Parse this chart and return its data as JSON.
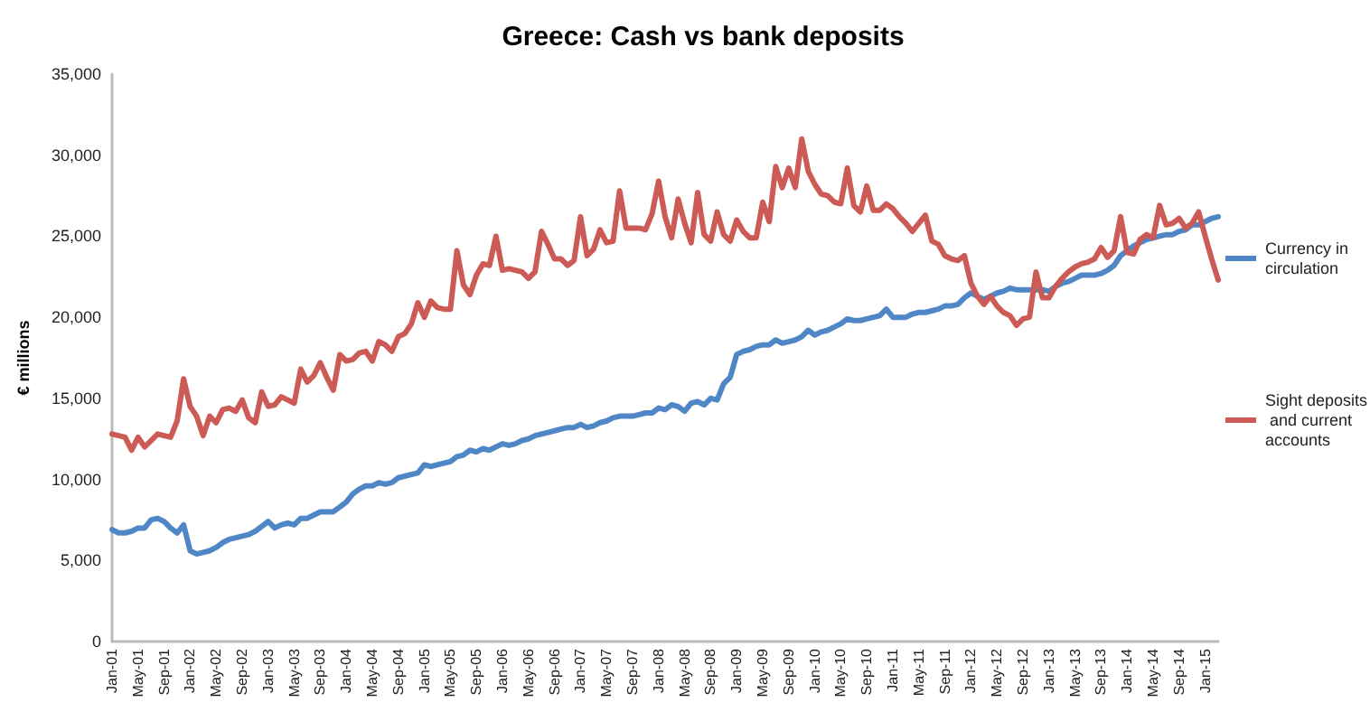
{
  "chart_data": {
    "type": "line",
    "title": "Greece: Cash vs bank deposits",
    "ylabel": "€ millions",
    "categories": [
      "Jan-01",
      null,
      null,
      null,
      "May-01",
      null,
      null,
      null,
      "Sep-01",
      null,
      null,
      null,
      "Jan-02",
      null,
      null,
      null,
      "May-02",
      null,
      null,
      null,
      "Sep-02",
      null,
      null,
      null,
      "Jan-03",
      null,
      null,
      null,
      "May-03",
      null,
      null,
      null,
      "Sep-03",
      null,
      null,
      null,
      "Jan-04",
      null,
      null,
      null,
      "May-04",
      null,
      null,
      null,
      "Sep-04",
      null,
      null,
      null,
      "Jan-05",
      null,
      null,
      null,
      "May-05",
      null,
      null,
      null,
      "Sep-05",
      null,
      null,
      null,
      "Jan-06",
      null,
      null,
      null,
      "May-06",
      null,
      null,
      null,
      "Sep-06",
      null,
      null,
      null,
      "Jan-07",
      null,
      null,
      null,
      "May-07",
      null,
      null,
      null,
      "Sep-07",
      null,
      null,
      null,
      "Jan-08",
      null,
      null,
      null,
      "May-08",
      null,
      null,
      null,
      "Sep-08",
      null,
      null,
      null,
      "Jan-09",
      null,
      null,
      null,
      "May-09",
      null,
      null,
      null,
      "Sep-09",
      null,
      null,
      null,
      "Jan-10",
      null,
      null,
      null,
      "May-10",
      null,
      null,
      null,
      "Sep-10",
      null,
      null,
      null,
      "Jan-11",
      null,
      null,
      null,
      "May-11",
      null,
      null,
      null,
      "Sep-11",
      null,
      null,
      null,
      "Jan-12",
      null,
      null,
      null,
      "May-12",
      null,
      null,
      null,
      "Sep-12",
      null,
      null,
      null,
      "Jan-13",
      null,
      null,
      null,
      "May-13",
      null,
      null,
      null,
      "Sep-13",
      null,
      null,
      null,
      "Jan-14",
      null,
      null,
      null,
      "May-14",
      null,
      null,
      null,
      "Sep-14",
      null,
      null,
      null,
      "Jan-15",
      null,
      null
    ],
    "series": [
      {
        "name": "Currency in circulation",
        "color": "#4f86c6",
        "values": [
          6900,
          6700,
          6700,
          6800,
          7000,
          7000,
          7500,
          7600,
          7400,
          7000,
          6700,
          7200,
          5600,
          5400,
          5500,
          5600,
          5800,
          6100,
          6300,
          6400,
          6500,
          6600,
          6800,
          7100,
          7400,
          7000,
          7200,
          7300,
          7200,
          7600,
          7600,
          7800,
          8000,
          8000,
          8000,
          8300,
          8600,
          9100,
          9400,
          9600,
          9600,
          9800,
          9700,
          9800,
          10100,
          10200,
          10300,
          10400,
          10900,
          10800,
          10900,
          11000,
          11100,
          11400,
          11500,
          11800,
          11700,
          11900,
          11800,
          12000,
          12200,
          12100,
          12200,
          12400,
          12500,
          12700,
          12800,
          12900,
          13000,
          13100,
          13200,
          13200,
          13400,
          13200,
          13300,
          13500,
          13600,
          13800,
          13900,
          13900,
          13900,
          14000,
          14100,
          14100,
          14400,
          14300,
          14600,
          14500,
          14200,
          14700,
          14800,
          14600,
          15000,
          14900,
          15900,
          16300,
          17700,
          17900,
          18000,
          18200,
          18300,
          18300,
          18600,
          18400,
          18500,
          18600,
          18800,
          19200,
          18900,
          19100,
          19200,
          19400,
          19600,
          19900,
          19800,
          19800,
          19900,
          20000,
          20100,
          20500,
          20000,
          20000,
          20000,
          20200,
          20300,
          20300,
          20400,
          20500,
          20700,
          20700,
          20800,
          21200,
          21500,
          21300,
          21100,
          21300,
          21500,
          21600,
          21800,
          21700,
          21700,
          21700,
          21700,
          21700,
          21600,
          21900,
          22100,
          22200,
          22400,
          22600,
          22600,
          22600,
          22700,
          22900,
          23200,
          23800,
          24100,
          24400,
          24600,
          24800,
          24900,
          25000,
          25100,
          25100,
          25300,
          25400,
          25700,
          25700,
          25900,
          26100,
          26200
        ]
      },
      {
        "name": "Sight deposits and current accounts",
        "color": "#cc5a55",
        "values": [
          12800,
          12700,
          12600,
          11800,
          12600,
          12000,
          12400,
          12800,
          12700,
          12600,
          13600,
          16200,
          14500,
          13900,
          12700,
          13900,
          13500,
          14300,
          14400,
          14200,
          14900,
          13800,
          13500,
          15400,
          14500,
          14600,
          15100,
          14900,
          14700,
          16800,
          16000,
          16400,
          17200,
          16300,
          15500,
          17700,
          17300,
          17400,
          17800,
          17900,
          17300,
          18500,
          18300,
          17900,
          18800,
          19000,
          19600,
          20900,
          20000,
          21000,
          20600,
          20500,
          20500,
          24100,
          22000,
          21400,
          22600,
          23300,
          23200,
          25000,
          22900,
          23000,
          22900,
          22800,
          22400,
          22800,
          25300,
          24500,
          23600,
          23600,
          23200,
          23500,
          26200,
          23800,
          24200,
          25400,
          24600,
          24700,
          27800,
          25500,
          25500,
          25500,
          25400,
          26400,
          28400,
          26200,
          24900,
          27300,
          25800,
          24600,
          27700,
          25100,
          24700,
          26500,
          25100,
          24700,
          26000,
          25300,
          24900,
          24900,
          27100,
          25900,
          29300,
          28000,
          29200,
          28000,
          31000,
          29000,
          28200,
          27600,
          27500,
          27100,
          27000,
          29200,
          26900,
          26500,
          28100,
          26600,
          26600,
          27000,
          26700,
          26200,
          25800,
          25300,
          25800,
          26300,
          24700,
          24500,
          23800,
          23600,
          23500,
          23800,
          22100,
          21300,
          20800,
          21300,
          20700,
          20300,
          20100,
          19500,
          19900,
          20000,
          22800,
          21200,
          21200,
          21900,
          22400,
          22800,
          23100,
          23300,
          23400,
          23600,
          24300,
          23700,
          24100,
          26200,
          24000,
          23900,
          24800,
          25100,
          24900,
          26900,
          25700,
          25800,
          26100,
          25500,
          25800,
          26500,
          25000,
          23600,
          22300
        ]
      }
    ],
    "ylim": [
      0,
      35000
    ],
    "yticks": [
      0,
      {
        "value": 5000,
        "label": "5,000"
      },
      {
        "value": 10000,
        "label": "10,000"
      },
      {
        "value": 15000,
        "label": "15,000"
      },
      {
        "value": 20000,
        "label": "20,000"
      },
      {
        "value": 25000,
        "label": "25,000"
      },
      {
        "value": 30000,
        "label": "30,000"
      },
      {
        "value": 35000,
        "label": "35,000"
      }
    ],
    "grid": false,
    "legend": "right",
    "marker": "none",
    "line_style": "solid"
  }
}
